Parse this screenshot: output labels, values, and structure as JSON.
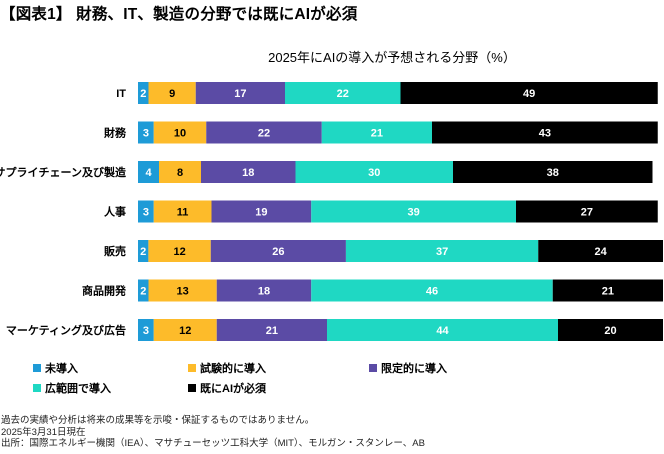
{
  "headline": "【図表1】 財務、IT、製造の分野では既にAIが必須",
  "chart_data": {
    "type": "bar",
    "orientation": "horizontal",
    "stacked": true,
    "title": "2025年にAIの導入が予想される分野（%）",
    "xlabel": "",
    "ylabel": "",
    "xlim": [
      0,
      100
    ],
    "grid": false,
    "legend_position": "bottom",
    "categories": [
      "IT",
      "財務",
      "サプライチェーン及び製造",
      "人事",
      "販売",
      "商品開発",
      "マーケティング及び広告"
    ],
    "series": [
      {
        "name": "未導入",
        "color": "#1E9BD7",
        "label_color": "#ffffff",
        "values": [
          2,
          3,
          4,
          3,
          2,
          2,
          3
        ]
      },
      {
        "name": "試験的に導入",
        "color": "#FDBB2A",
        "label_color": "#000000",
        "values": [
          9,
          10,
          8,
          11,
          12,
          13,
          12
        ]
      },
      {
        "name": "限定的に導入",
        "color": "#5B4BA5",
        "label_color": "#ffffff",
        "values": [
          17,
          22,
          18,
          19,
          26,
          18,
          21
        ]
      },
      {
        "name": "広範囲で導入",
        "color": "#1FD8C3",
        "label_color": "#ffffff",
        "values": [
          22,
          21,
          30,
          39,
          37,
          46,
          44
        ]
      },
      {
        "name": "既にAIが必須",
        "color": "#000000",
        "label_color": "#ffffff",
        "values": [
          49,
          43,
          38,
          27,
          24,
          21,
          20
        ]
      }
    ]
  },
  "footer": {
    "disclaimer": "過去の実績や分析は将来の成果等を示唆・保証するものではありません。",
    "as_of": "2025年3月31日現在",
    "source": "出所：国際エネルギー機関（IEA）、マサチューセッツ工科大学（MIT）、モルガン・スタンレー、AB"
  }
}
